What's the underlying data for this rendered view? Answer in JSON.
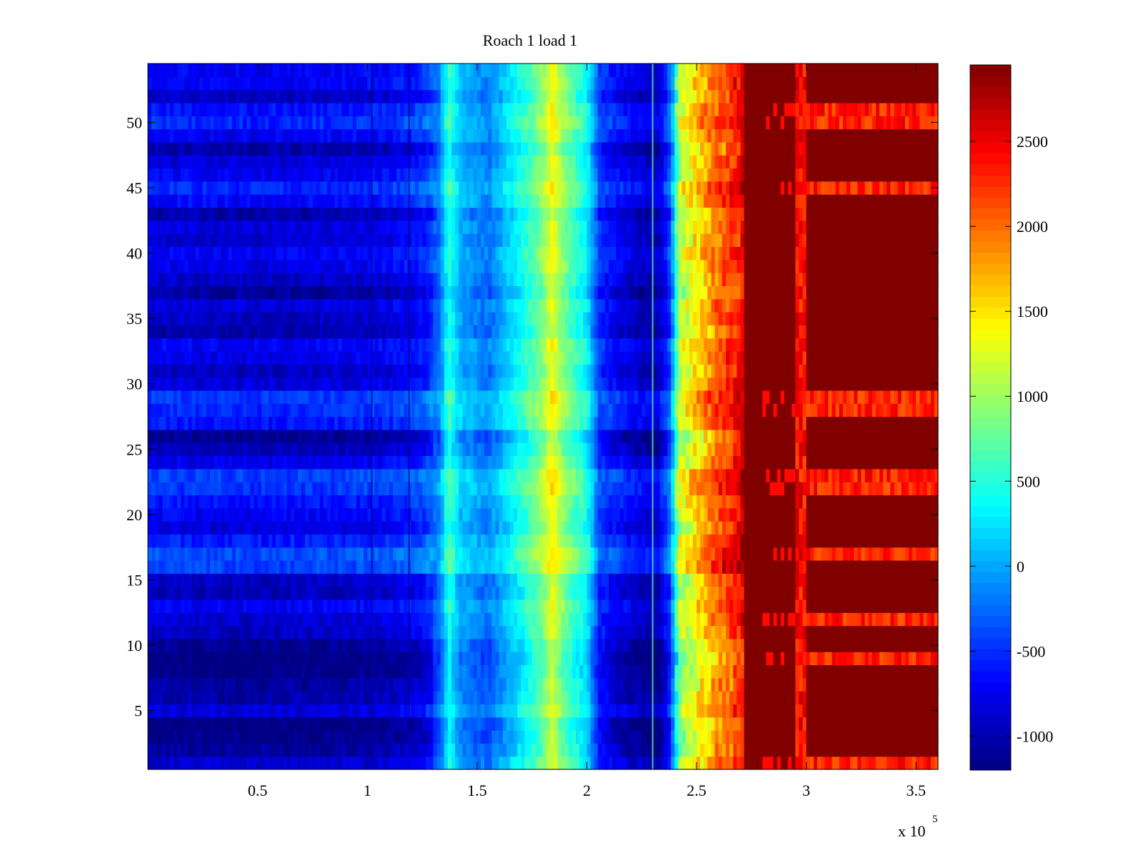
{
  "chart_data": {
    "type": "heatmap",
    "title": "Roach 1 load 1",
    "xlabel": "",
    "ylabel": "",
    "x_exponent_label": "x 10",
    "x_exponent_power": "5",
    "xlim": [
      0.0,
      3.6
    ],
    "ylim": [
      0.5,
      54.5
    ],
    "x_ticks": [
      0.5,
      1,
      1.5,
      2,
      2.5,
      3,
      3.5
    ],
    "x_tick_labels": [
      "0.5",
      "1",
      "1.5",
      "2",
      "2.5",
      "3",
      "3.5"
    ],
    "y_ticks": [
      5,
      10,
      15,
      20,
      25,
      30,
      35,
      40,
      45,
      50
    ],
    "y_tick_labels": [
      "5",
      "10",
      "15",
      "20",
      "25",
      "30",
      "35",
      "40",
      "45",
      "50"
    ],
    "colorbar": {
      "colormap": "jet",
      "range": [
        -1200,
        2950
      ],
      "ticks": [
        -1000,
        -500,
        0,
        500,
        1000,
        1500,
        2000,
        2500
      ],
      "tick_labels": [
        "-1000",
        "-500",
        "0",
        "500",
        "1000",
        "1500",
        "2000",
        "2500"
      ]
    },
    "rows": 54,
    "x_profile": [
      {
        "x": 0.0,
        "value": -700
      },
      {
        "x": 0.5,
        "value": -750
      },
      {
        "x": 0.9,
        "value": -700
      },
      {
        "x": 1.1,
        "value": -650
      },
      {
        "x": 1.25,
        "value": -500
      },
      {
        "x": 1.33,
        "value": -150
      },
      {
        "x": 1.37,
        "value": 600
      },
      {
        "x": 1.42,
        "value": 100
      },
      {
        "x": 1.55,
        "value": -150
      },
      {
        "x": 1.62,
        "value": 150
      },
      {
        "x": 1.72,
        "value": 550
      },
      {
        "x": 1.8,
        "value": 950
      },
      {
        "x": 1.84,
        "value": 1400
      },
      {
        "x": 1.9,
        "value": 900
      },
      {
        "x": 2.0,
        "value": 400
      },
      {
        "x": 2.06,
        "value": -450
      },
      {
        "x": 2.2,
        "value": -750
      },
      {
        "x": 2.32,
        "value": -900
      },
      {
        "x": 2.38,
        "value": -300
      },
      {
        "x": 2.42,
        "value": 1100
      },
      {
        "x": 2.5,
        "value": 1600
      },
      {
        "x": 2.6,
        "value": 2100
      },
      {
        "x": 2.7,
        "value": 2450
      },
      {
        "x": 2.73,
        "value": 2950
      },
      {
        "x": 3.6,
        "value": 2950
      }
    ],
    "row_offsets": [
      -150,
      -350,
      -450,
      -500,
      -100,
      -300,
      -350,
      -450,
      -500,
      -400,
      -200,
      -150,
      0,
      -250,
      -200,
      300,
      350,
      150,
      -100,
      0,
      100,
      250,
      300,
      -50,
      -250,
      -400,
      100,
      200,
      250,
      -100,
      -200,
      -50,
      0,
      -300,
      -200,
      -100,
      -350,
      -200,
      -50,
      0,
      -150,
      -100,
      -300,
      50,
      200,
      0,
      -100,
      -300,
      0,
      200,
      100,
      -200,
      0,
      0
    ],
    "red_band_rows": [
      1,
      9,
      12,
      17,
      22,
      23,
      28,
      29,
      45,
      50,
      51
    ],
    "vertical_lines": [
      {
        "x": 1.02,
        "value": -1100
      },
      {
        "x": 1.19,
        "value": -1100
      },
      {
        "x": 2.3,
        "value": 700
      }
    ]
  }
}
